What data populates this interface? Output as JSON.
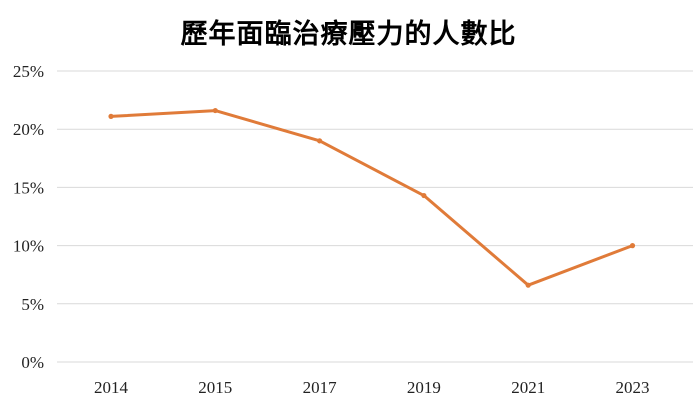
{
  "chart_data": {
    "type": "line",
    "title": "歷年面臨治療壓力的人數比",
    "categories": [
      "2014",
      "2015",
      "2017",
      "2019",
      "2021",
      "2023"
    ],
    "values": [
      21.1,
      21.6,
      19.0,
      14.3,
      6.6,
      10.0
    ],
    "y_ticks": [
      "0%",
      "5%",
      "10%",
      "15%",
      "20%",
      "25%"
    ],
    "ylim": [
      0,
      25
    ],
    "y_unit": "%",
    "grid": "horizontal",
    "legend": "none",
    "line_color": "#E07B39",
    "grid_color": "#D9D9D9"
  }
}
